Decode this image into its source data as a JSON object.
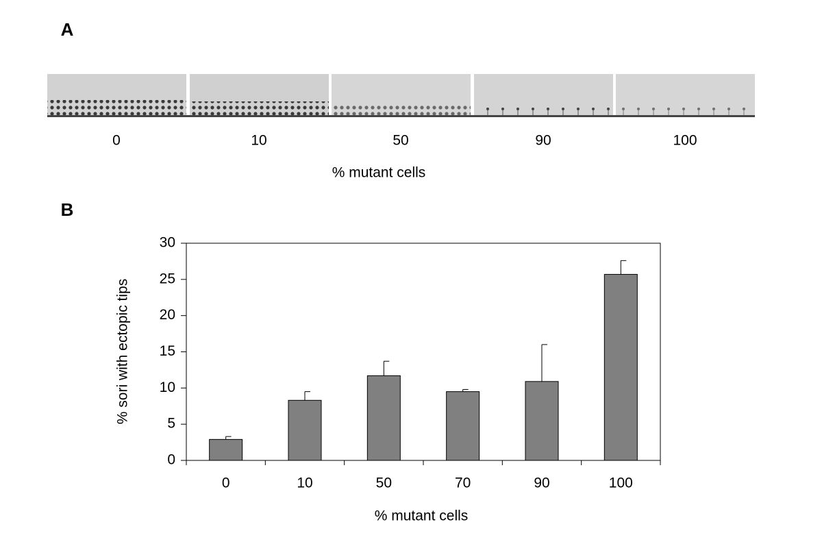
{
  "panel_a": {
    "label": "A",
    "image_labels": [
      "0",
      "10",
      "50",
      "90",
      "100"
    ],
    "xlabel": "% mutant cells"
  },
  "chart_data": {
    "type": "bar",
    "panel_label": "B",
    "categories": [
      "0",
      "10",
      "50",
      "70",
      "90",
      "100"
    ],
    "values": [
      2.9,
      8.3,
      11.7,
      9.5,
      10.9,
      25.7
    ],
    "errors": [
      0.4,
      1.2,
      2.0,
      0.3,
      5.1,
      1.9
    ],
    "color": "#808080",
    "ylabel": "% sori with ectopic tips",
    "xlabel": "% mutant cells",
    "ylim": [
      0,
      30
    ],
    "yticks": [
      0,
      5,
      10,
      15,
      20,
      25,
      30
    ],
    "grid": false
  }
}
